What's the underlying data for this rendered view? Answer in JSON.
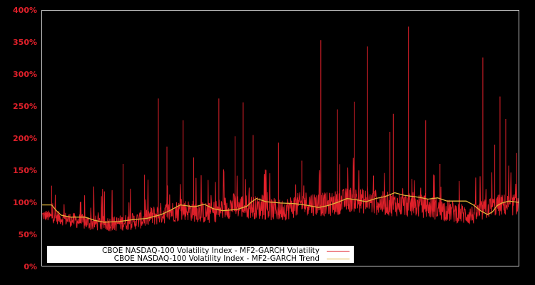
{
  "chart_data": {
    "type": "line",
    "title": "",
    "xlabel": "",
    "ylabel": "",
    "ylim": [
      0,
      400
    ],
    "y_ticks": [
      "0%",
      "50%",
      "100%",
      "150%",
      "200%",
      "250%",
      "300%",
      "350%",
      "400%"
    ],
    "x_ticks": [],
    "grid": false,
    "background": "#000000",
    "legend_position": "lower-left (inside plot)",
    "series": [
      {
        "name": "CBOE NASDAQ-100 Volatility Index - MF2-GARCH Volatility",
        "color": "#e0202a",
        "style": "noisy daily series with spikes",
        "baseline_band": [
          {
            "x_frac": 0.0,
            "low": 72,
            "high": 88
          },
          {
            "x_frac": 0.05,
            "low": 63,
            "high": 85
          },
          {
            "x_frac": 0.1,
            "low": 56,
            "high": 80
          },
          {
            "x_frac": 0.15,
            "low": 55,
            "high": 78
          },
          {
            "x_frac": 0.2,
            "low": 58,
            "high": 85
          },
          {
            "x_frac": 0.25,
            "low": 66,
            "high": 100
          },
          {
            "x_frac": 0.3,
            "low": 72,
            "high": 105
          },
          {
            "x_frac": 0.35,
            "low": 66,
            "high": 100
          },
          {
            "x_frac": 0.4,
            "low": 76,
            "high": 115
          },
          {
            "x_frac": 0.45,
            "low": 74,
            "high": 110
          },
          {
            "x_frac": 0.5,
            "low": 70,
            "high": 105
          },
          {
            "x_frac": 0.55,
            "low": 80,
            "high": 118
          },
          {
            "x_frac": 0.6,
            "low": 78,
            "high": 115
          },
          {
            "x_frac": 0.65,
            "low": 85,
            "high": 125
          },
          {
            "x_frac": 0.7,
            "low": 80,
            "high": 118
          },
          {
            "x_frac": 0.75,
            "low": 78,
            "high": 115
          },
          {
            "x_frac": 0.8,
            "low": 76,
            "high": 112
          },
          {
            "x_frac": 0.85,
            "low": 70,
            "high": 105
          },
          {
            "x_frac": 0.9,
            "low": 64,
            "high": 95
          },
          {
            "x_frac": 0.95,
            "low": 78,
            "high": 112
          },
          {
            "x_frac": 1.0,
            "low": 80,
            "high": 115
          }
        ],
        "spikes": [
          {
            "x_frac": 0.02,
            "value": 126
          },
          {
            "x_frac": 0.17,
            "value": 160
          },
          {
            "x_frac": 0.215,
            "value": 143
          },
          {
            "x_frac": 0.244,
            "value": 262
          },
          {
            "x_frac": 0.262,
            "value": 187
          },
          {
            "x_frac": 0.296,
            "value": 228
          },
          {
            "x_frac": 0.318,
            "value": 170
          },
          {
            "x_frac": 0.371,
            "value": 262
          },
          {
            "x_frac": 0.405,
            "value": 203
          },
          {
            "x_frac": 0.422,
            "value": 256
          },
          {
            "x_frac": 0.443,
            "value": 205
          },
          {
            "x_frac": 0.496,
            "value": 193
          },
          {
            "x_frac": 0.545,
            "value": 165
          },
          {
            "x_frac": 0.585,
            "value": 353
          },
          {
            "x_frac": 0.62,
            "value": 245
          },
          {
            "x_frac": 0.655,
            "value": 257
          },
          {
            "x_frac": 0.683,
            "value": 343
          },
          {
            "x_frac": 0.73,
            "value": 210
          },
          {
            "x_frac": 0.737,
            "value": 238
          },
          {
            "x_frac": 0.769,
            "value": 374
          },
          {
            "x_frac": 0.805,
            "value": 228
          },
          {
            "x_frac": 0.835,
            "value": 160
          },
          {
            "x_frac": 0.925,
            "value": 326
          },
          {
            "x_frac": 0.95,
            "value": 190
          },
          {
            "x_frac": 0.961,
            "value": 265
          },
          {
            "x_frac": 0.973,
            "value": 230
          },
          {
            "x_frac": 0.996,
            "value": 177
          }
        ]
      },
      {
        "name": "CBOE NASDAQ-100 Volatility Index - MF2-GARCH Trend",
        "color": "#e2b43a",
        "style": "smooth line",
        "points": [
          {
            "x_frac": 0.0,
            "value": 96
          },
          {
            "x_frac": 0.02,
            "value": 96
          },
          {
            "x_frac": 0.03,
            "value": 87
          },
          {
            "x_frac": 0.04,
            "value": 80
          },
          {
            "x_frac": 0.06,
            "value": 77
          },
          {
            "x_frac": 0.09,
            "value": 77
          },
          {
            "x_frac": 0.11,
            "value": 72
          },
          {
            "x_frac": 0.13,
            "value": 69
          },
          {
            "x_frac": 0.16,
            "value": 70
          },
          {
            "x_frac": 0.19,
            "value": 73
          },
          {
            "x_frac": 0.22,
            "value": 75
          },
          {
            "x_frac": 0.25,
            "value": 81
          },
          {
            "x_frac": 0.27,
            "value": 88
          },
          {
            "x_frac": 0.29,
            "value": 96
          },
          {
            "x_frac": 0.32,
            "value": 93
          },
          {
            "x_frac": 0.34,
            "value": 97
          },
          {
            "x_frac": 0.36,
            "value": 90
          },
          {
            "x_frac": 0.38,
            "value": 87
          },
          {
            "x_frac": 0.41,
            "value": 89
          },
          {
            "x_frac": 0.43,
            "value": 94
          },
          {
            "x_frac": 0.44,
            "value": 101
          },
          {
            "x_frac": 0.45,
            "value": 106
          },
          {
            "x_frac": 0.47,
            "value": 101
          },
          {
            "x_frac": 0.5,
            "value": 99
          },
          {
            "x_frac": 0.53,
            "value": 98
          },
          {
            "x_frac": 0.56,
            "value": 95
          },
          {
            "x_frac": 0.58,
            "value": 92
          },
          {
            "x_frac": 0.6,
            "value": 95
          },
          {
            "x_frac": 0.62,
            "value": 100
          },
          {
            "x_frac": 0.64,
            "value": 106
          },
          {
            "x_frac": 0.66,
            "value": 104
          },
          {
            "x_frac": 0.68,
            "value": 101
          },
          {
            "x_frac": 0.7,
            "value": 106
          },
          {
            "x_frac": 0.72,
            "value": 109
          },
          {
            "x_frac": 0.74,
            "value": 115
          },
          {
            "x_frac": 0.76,
            "value": 111
          },
          {
            "x_frac": 0.79,
            "value": 108
          },
          {
            "x_frac": 0.81,
            "value": 105
          },
          {
            "x_frac": 0.83,
            "value": 107
          },
          {
            "x_frac": 0.85,
            "value": 102
          },
          {
            "x_frac": 0.87,
            "value": 102
          },
          {
            "x_frac": 0.89,
            "value": 102
          },
          {
            "x_frac": 0.905,
            "value": 96
          },
          {
            "x_frac": 0.92,
            "value": 87
          },
          {
            "x_frac": 0.935,
            "value": 81
          },
          {
            "x_frac": 0.945,
            "value": 85
          },
          {
            "x_frac": 0.955,
            "value": 95
          },
          {
            "x_frac": 0.965,
            "value": 99
          },
          {
            "x_frac": 0.98,
            "value": 102
          },
          {
            "x_frac": 0.99,
            "value": 101
          },
          {
            "x_frac": 1.0,
            "value": 100
          }
        ]
      }
    ]
  },
  "legend": {
    "items": [
      {
        "label": "CBOE NASDAQ-100 Volatility Index - MF2-GARCH Volatility",
        "color": "#e0202a"
      },
      {
        "label": "CBOE NASDAQ-100 Volatility Index - MF2-GARCH Trend",
        "color": "#e2b43a"
      }
    ]
  }
}
